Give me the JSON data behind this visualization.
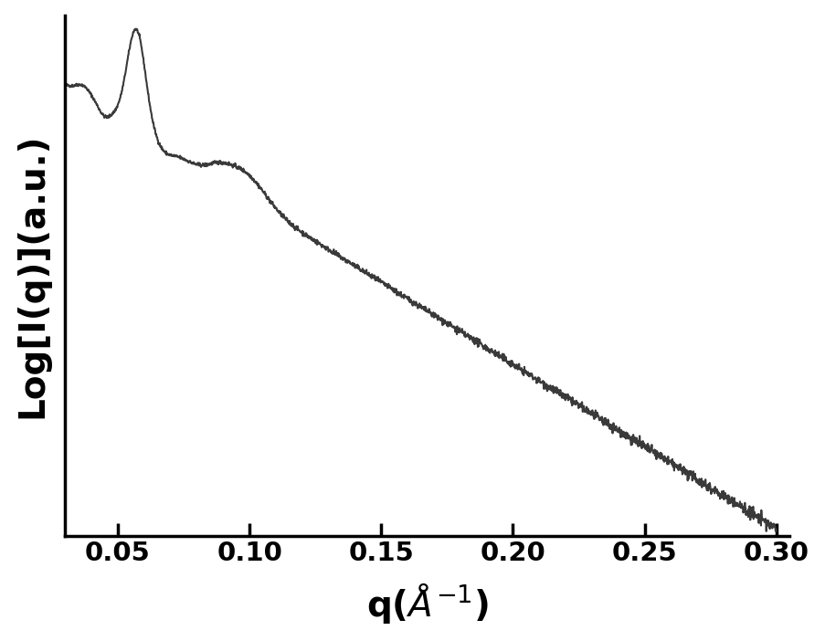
{
  "ylabel": "Log[I(q)](a.u.)",
  "xlabel": "q(Å⁻¹)",
  "xlim": [
    0.03,
    0.305
  ],
  "line_color": "#3a3a3a",
  "line_width": 1.5,
  "background_color": "#ffffff",
  "tick_fontsize": 21,
  "label_fontsize": 28,
  "xticks": [
    0.05,
    0.1,
    0.15,
    0.2,
    0.25,
    0.3
  ],
  "xtick_labels": [
    "0.05",
    "0.10",
    "0.15",
    "0.20",
    "0.25",
    "0.30"
  ]
}
